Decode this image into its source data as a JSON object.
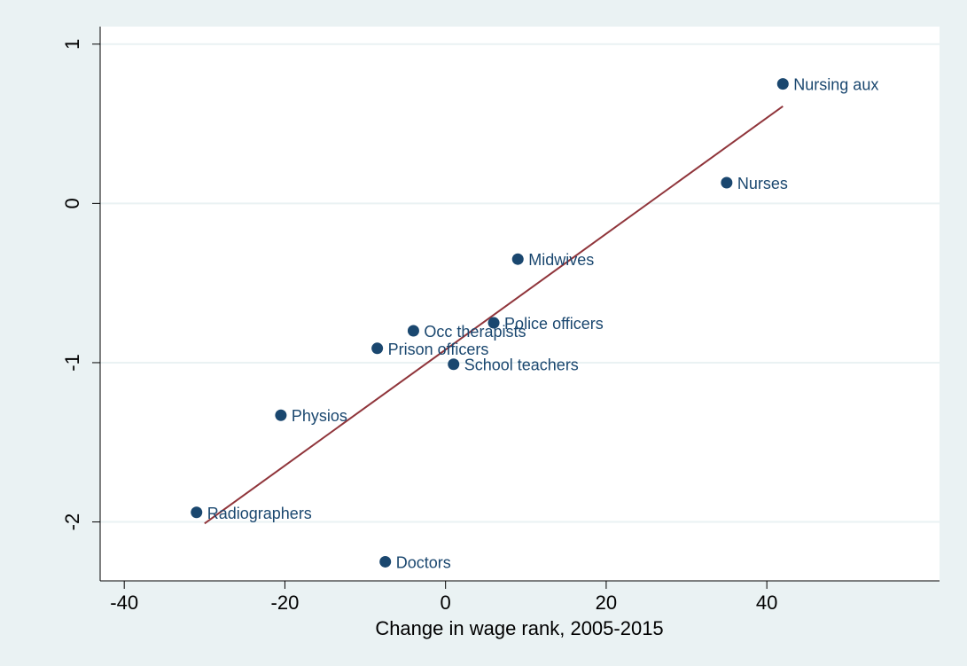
{
  "chart_data": {
    "type": "scatter",
    "x_label": "Change in wage rank, 2005-2015",
    "labels": [
      "Nursing aux",
      "Nurses",
      "Midwives",
      "Police officers",
      "Occ therapists",
      "Prison officers",
      "School teachers",
      "Physios",
      "Radiographers",
      "Doctors"
    ],
    "x": [
      42,
      35,
      9,
      6,
      -4,
      -8.5,
      1,
      -20.5,
      -31,
      -7.5
    ],
    "y": [
      0.75,
      0.13,
      -0.35,
      -0.75,
      -0.8,
      -0.91,
      -1.01,
      -1.33,
      -1.94,
      -2.25
    ],
    "color": "#1a476f",
    "fit_line": {
      "x": [
        -30,
        42
      ],
      "y": [
        -2.01,
        0.61
      ],
      "color": "#90353b"
    },
    "xlim": [
      -43,
      61.5
    ],
    "ylim": [
      -2.37,
      1.11
    ],
    "xticks": [
      -40,
      -20,
      0,
      20,
      40
    ],
    "yticks": [
      -2,
      -1,
      0,
      1
    ],
    "grid": true
  }
}
